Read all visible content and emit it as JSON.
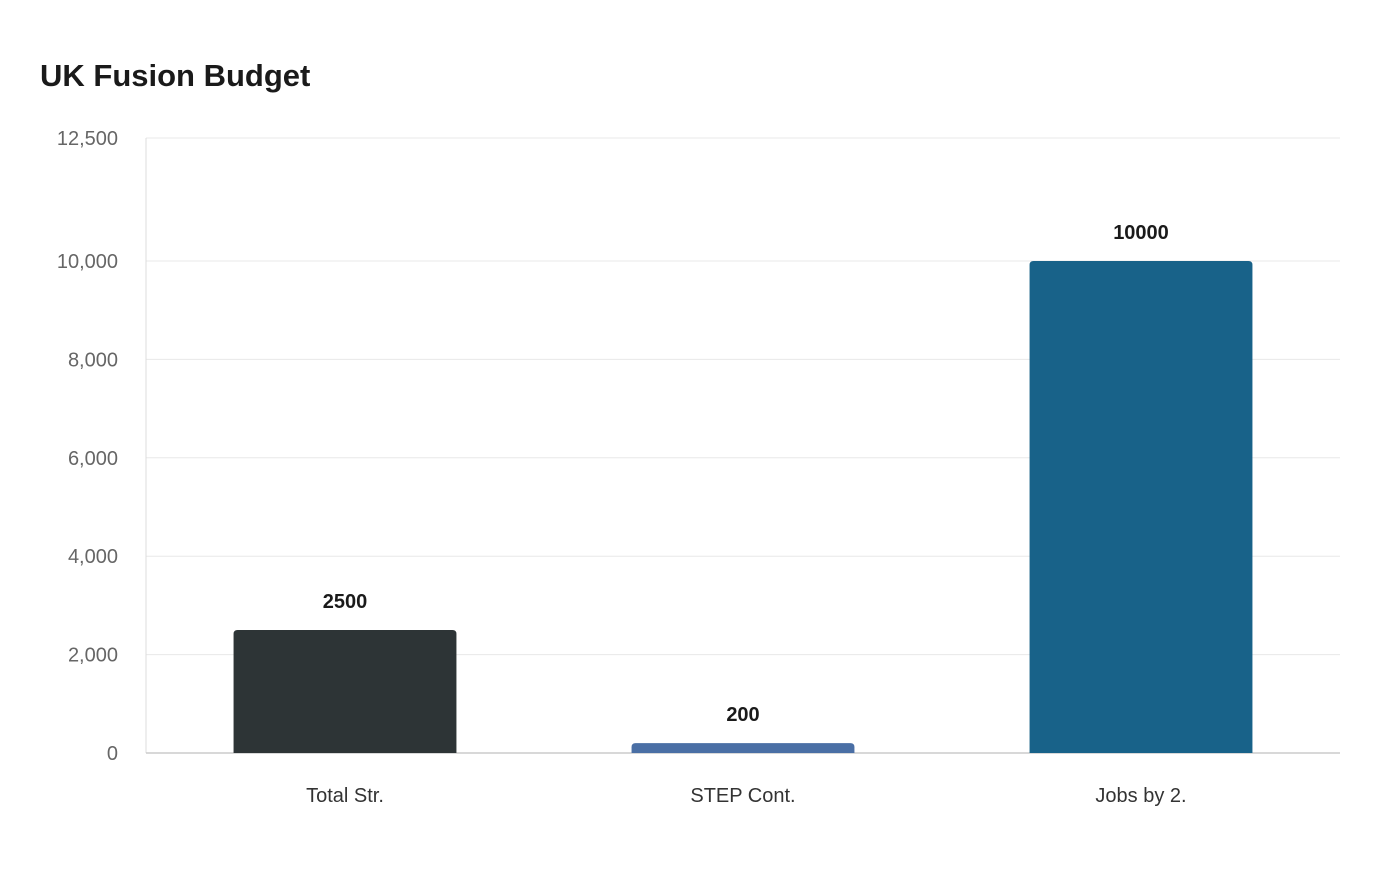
{
  "chart_data": {
    "type": "bar",
    "title": "UK Fusion Budget",
    "xlabel": "",
    "ylabel": "",
    "categories": [
      "Total Str.",
      "STEP Cont.",
      "Jobs by 2."
    ],
    "values": [
      2500,
      200,
      10000
    ],
    "value_labels": [
      "2500",
      "200",
      "10000"
    ],
    "colors": [
      "#2d3436",
      "#4a6fa5",
      "#186289"
    ],
    "ylim": [
      0,
      12500
    ],
    "yticks": [
      0,
      2000,
      4000,
      6000,
      8000,
      10000,
      12500
    ],
    "ytick_labels": [
      "0",
      "2,000",
      "4,000",
      "6,000",
      "8,000",
      "10,000",
      "12,500"
    ],
    "grid": true,
    "legend": "none"
  }
}
